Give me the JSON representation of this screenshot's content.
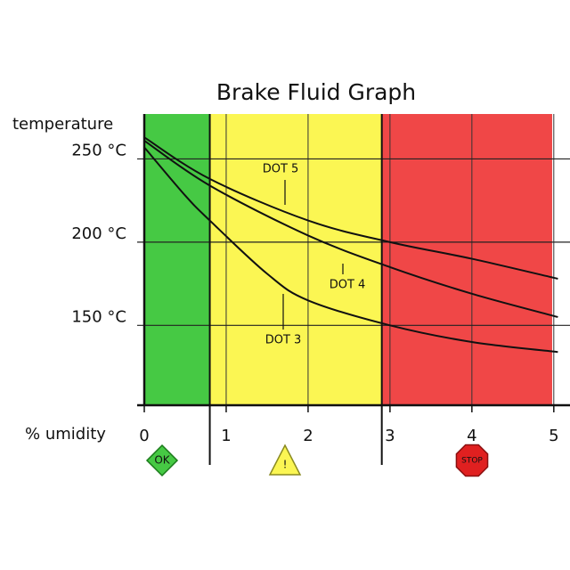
{
  "chart_data": {
    "type": "line",
    "title": "Brake Fluid Graph",
    "y_label": "temperature",
    "x_label": "% umidity",
    "xlim": [
      0,
      5.1
    ],
    "ylim": [
      102,
      277
    ],
    "xticks": [
      0,
      1,
      2,
      3,
      4,
      5
    ],
    "yticks": [
      {
        "value": 150,
        "label": "150 °C"
      },
      {
        "value": 200,
        "label": "200 °C"
      },
      {
        "value": 250,
        "label": "250 °C"
      }
    ],
    "grid": true,
    "zones": [
      {
        "from": 0,
        "to": 0.8,
        "color": "#46c944",
        "label": "OK"
      },
      {
        "from": 0.8,
        "to": 2.9,
        "color": "#fbf653",
        "label": "!"
      },
      {
        "from": 2.9,
        "to": 4.98,
        "color": "#f04747",
        "label": "STOP"
      }
    ],
    "series": [
      {
        "name": "DOT 5",
        "color": "#111111",
        "x": [
          0,
          0.8,
          2,
          3,
          4,
          5.05
        ],
        "values": [
          263,
          238,
          213,
          200,
          190,
          178
        ]
      },
      {
        "name": "DOT 4",
        "color": "#111111",
        "x": [
          0,
          0.8,
          2,
          3,
          4,
          5.05
        ],
        "values": [
          261,
          234,
          204,
          185,
          169,
          155
        ]
      },
      {
        "name": "DOT 3",
        "color": "#111111",
        "x": [
          0,
          0.5,
          0.8,
          1.5,
          2,
          3,
          4,
          5.05
        ],
        "values": [
          257,
          228,
          213,
          181,
          165,
          150,
          140,
          134
        ]
      }
    ]
  }
}
